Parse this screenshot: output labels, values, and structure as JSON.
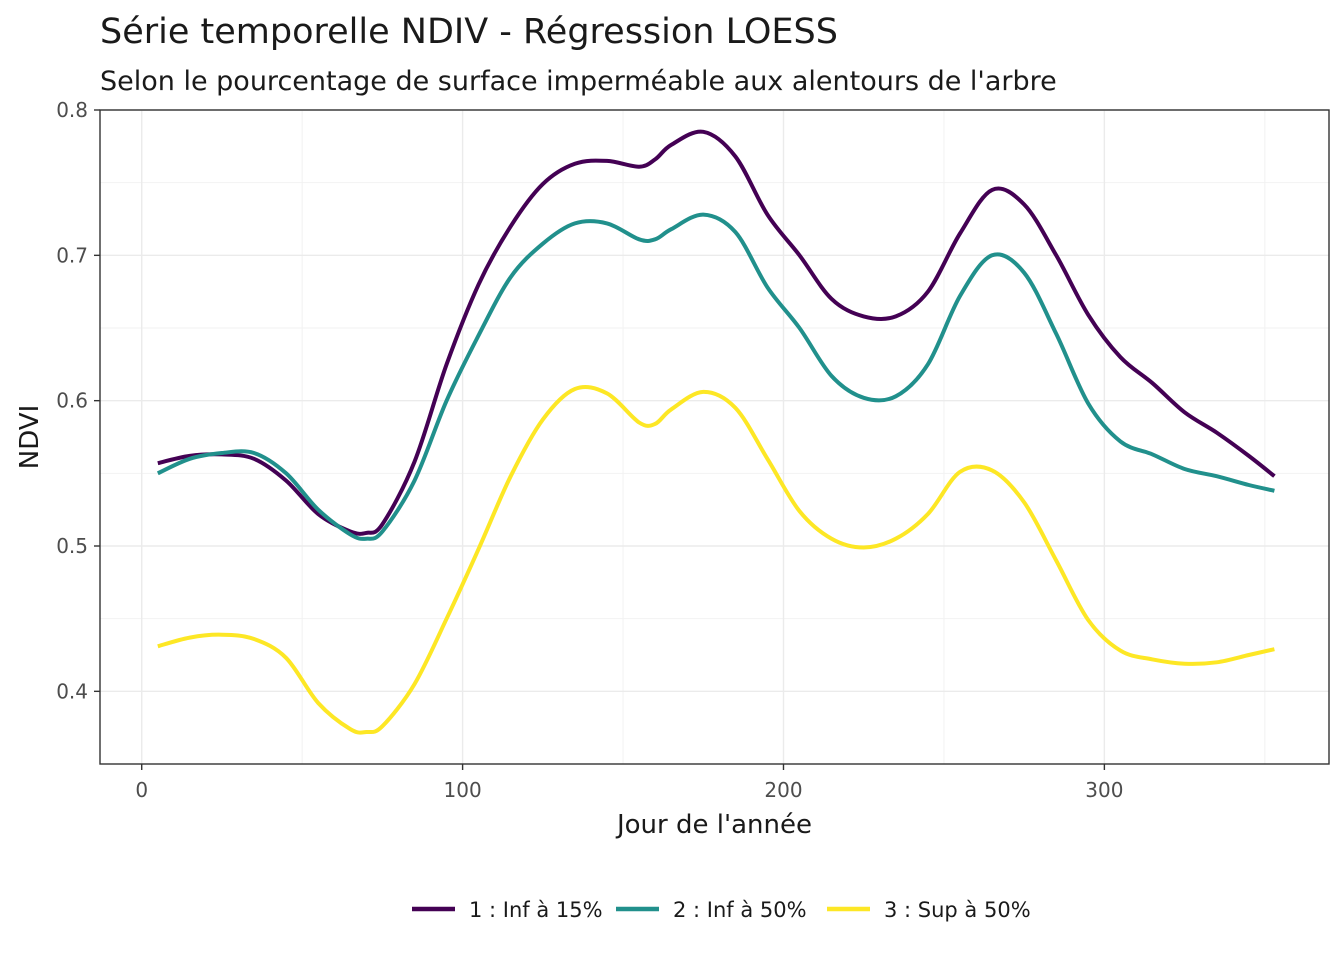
{
  "chart_data": {
    "type": "line",
    "title": "Série temporelle NDIV - Régression LOESS",
    "subtitle": "Selon le pourcentage de surface imperméable aux alentours de l'arbre",
    "xlabel": "Jour de l'année",
    "ylabel": "NDVI",
    "xlim": [
      -13,
      370
    ],
    "ylim": [
      0.35,
      0.8
    ],
    "x_ticks": [
      0,
      100,
      200,
      300
    ],
    "x_tick_labels": [
      "0",
      "100",
      "200",
      "300"
    ],
    "y_ticks": [
      0.4,
      0.5,
      0.6,
      0.7,
      0.8
    ],
    "y_tick_labels": [
      "0.4",
      "0.5",
      "0.6",
      "0.7",
      "0.8"
    ],
    "grid": true,
    "legend_position": "bottom",
    "x": [
      5,
      15,
      25,
      35,
      45,
      55,
      65,
      70,
      75,
      85,
      95,
      105,
      115,
      125,
      135,
      145,
      155,
      160,
      165,
      175,
      185,
      195,
      205,
      215,
      225,
      235,
      245,
      255,
      265,
      275,
      285,
      295,
      305,
      315,
      325,
      335,
      345,
      353
    ],
    "series": [
      {
        "name": "1 : Inf à 15%",
        "color": "#440154",
        "values": [
          0.557,
          0.562,
          0.563,
          0.56,
          0.545,
          0.522,
          0.51,
          0.509,
          0.515,
          0.558,
          0.625,
          0.68,
          0.72,
          0.749,
          0.763,
          0.765,
          0.761,
          0.766,
          0.776,
          0.785,
          0.768,
          0.728,
          0.7,
          0.67,
          0.658,
          0.658,
          0.675,
          0.715,
          0.745,
          0.735,
          0.7,
          0.659,
          0.63,
          0.612,
          0.592,
          0.578,
          0.562,
          0.548
        ]
      },
      {
        "name": "2 : Inf à 50%",
        "color": "#21908c",
        "values": [
          0.55,
          0.56,
          0.564,
          0.564,
          0.55,
          0.525,
          0.508,
          0.505,
          0.51,
          0.545,
          0.6,
          0.645,
          0.685,
          0.708,
          0.722,
          0.722,
          0.711,
          0.711,
          0.718,
          0.728,
          0.716,
          0.678,
          0.65,
          0.617,
          0.602,
          0.603,
          0.625,
          0.672,
          0.7,
          0.688,
          0.646,
          0.598,
          0.572,
          0.563,
          0.553,
          0.548,
          0.542,
          0.538
        ]
      },
      {
        "name": "3 : Sup à 50%",
        "color": "#fde725",
        "values": [
          0.431,
          0.437,
          0.439,
          0.436,
          0.423,
          0.392,
          0.374,
          0.372,
          0.376,
          0.405,
          0.45,
          0.498,
          0.548,
          0.587,
          0.608,
          0.605,
          0.585,
          0.584,
          0.594,
          0.606,
          0.595,
          0.56,
          0.524,
          0.505,
          0.499,
          0.505,
          0.522,
          0.551,
          0.552,
          0.53,
          0.49,
          0.449,
          0.428,
          0.422,
          0.419,
          0.42,
          0.425,
          0.429
        ]
      }
    ]
  }
}
